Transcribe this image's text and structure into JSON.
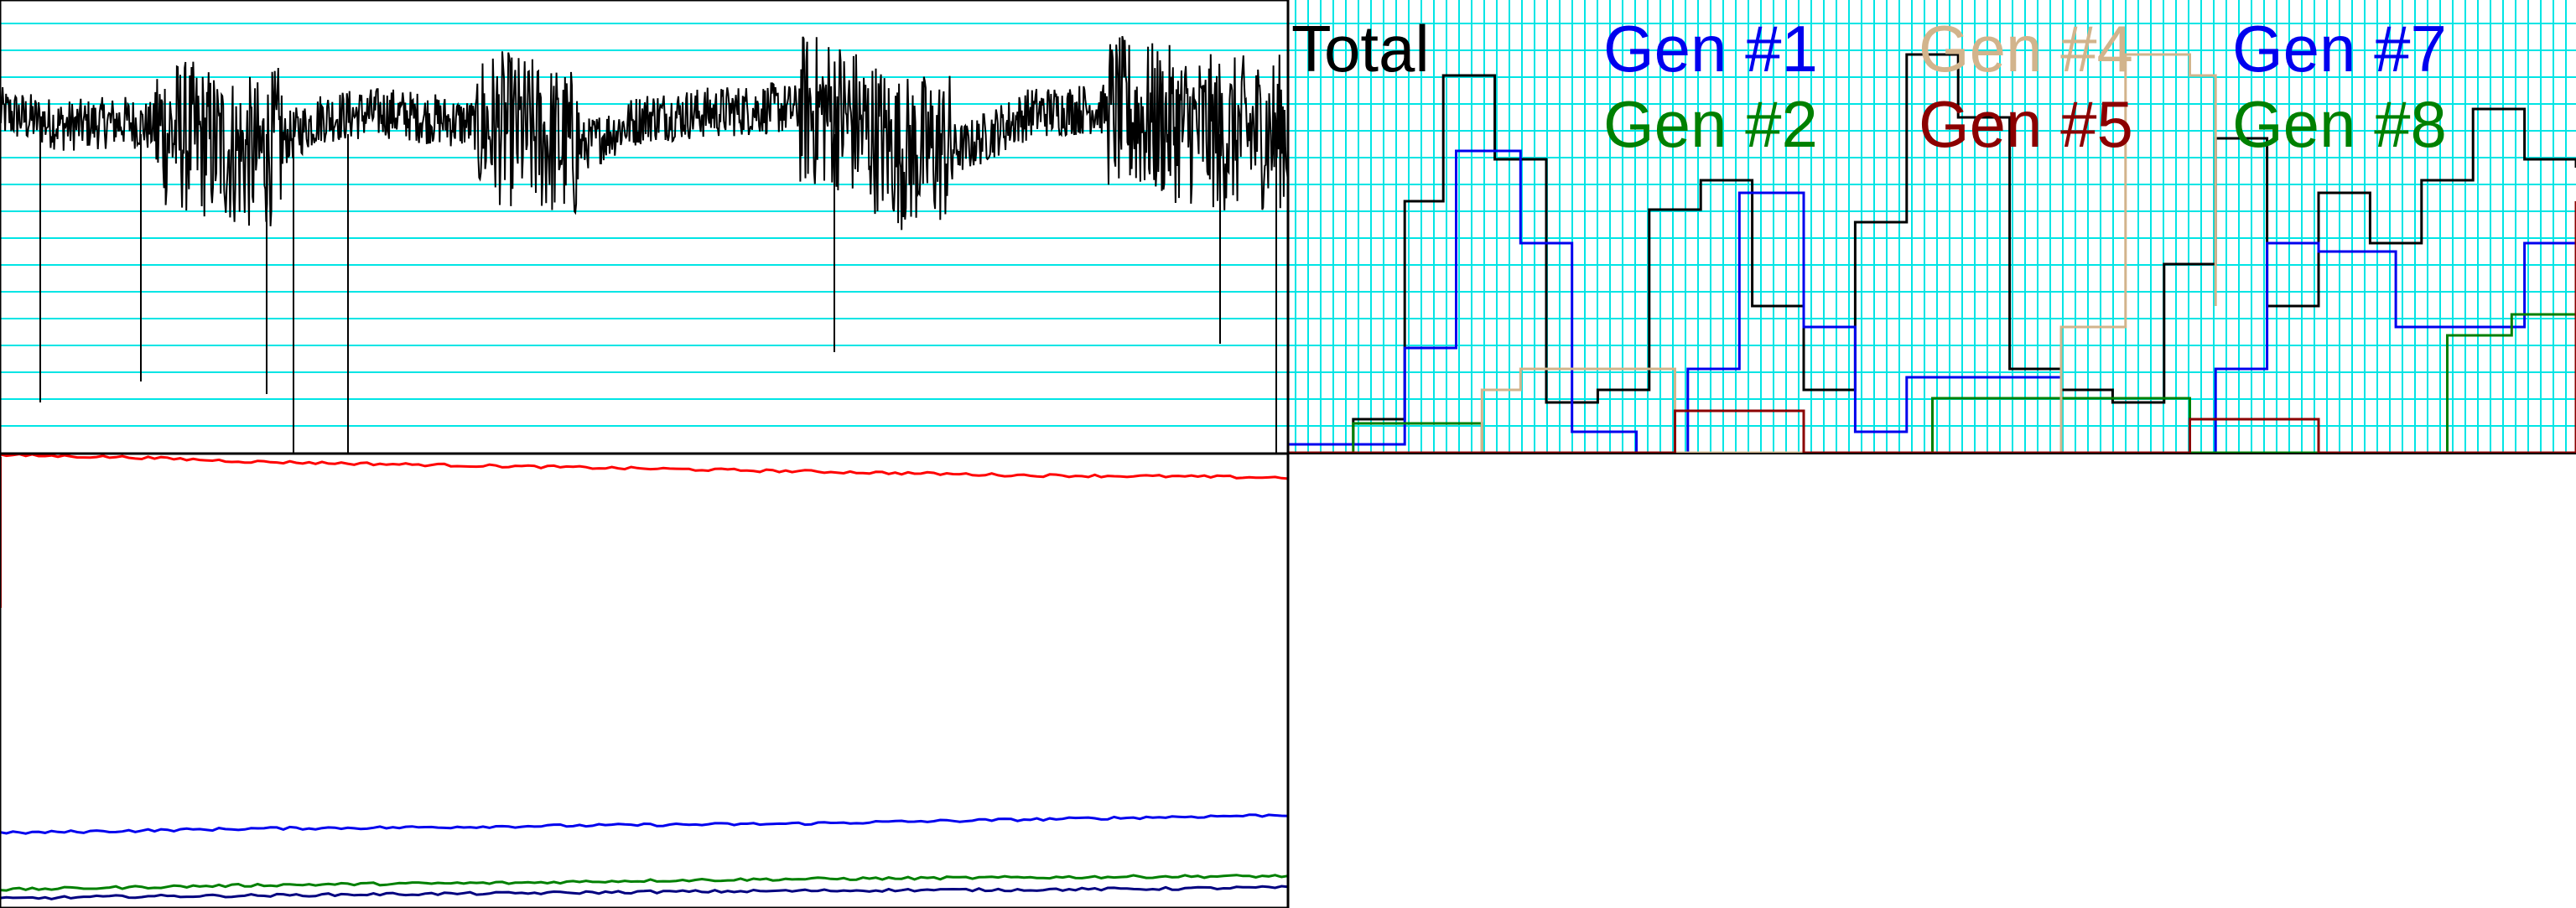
{
  "colors": {
    "grid": "#00e5e5",
    "frame": "#000000",
    "total": "#000000",
    "gen1": "#0000ee",
    "gen2": "#008000",
    "gen4": "#d2b48c",
    "gen5": "#8b0000",
    "gen7": "#0000ee",
    "gen8": "#008000",
    "red": "#ff0000"
  },
  "legend": [
    {
      "label": "Total",
      "color": "#000000"
    },
    {
      "label": "Gen #1",
      "color": "#0000ee"
    },
    {
      "label": "Gen #4",
      "color": "#d2b48c"
    },
    {
      "label": "Gen #7",
      "color": "#0000ee"
    },
    {
      "label": "Gen #2",
      "color": "#008000"
    },
    {
      "label": "Gen #5",
      "color": "#8b0000"
    },
    {
      "label": "Gen #8",
      "color": "#008000"
    }
  ],
  "chart_data": [
    {
      "type": "line",
      "panel": "top-left",
      "title": "",
      "xlabel": "",
      "ylabel": "",
      "grid": "horizontal",
      "series": [
        {
          "color": "#000000",
          "x": [
            0,
            0.05,
            0.1,
            0.15,
            0.2,
            0.25,
            0.3,
            0.35,
            0.4,
            0.45,
            0.5,
            0.55,
            0.6,
            0.65,
            0.7,
            0.75,
            0.8,
            0.85,
            0.9,
            0.95,
            1.0
          ],
          "values": [
            0.78,
            0.75,
            0.76,
            0.72,
            0.68,
            0.77,
            0.78,
            0.76,
            0.74,
            0.7,
            0.77,
            0.78,
            0.79,
            0.78,
            0.69,
            0.7,
            0.78,
            0.79,
            0.76,
            0.73,
            0.74
          ]
        }
      ]
    },
    {
      "type": "line",
      "panel": "bottom-left",
      "title": "",
      "grid": "none",
      "series": [
        {
          "color": "#ff0000",
          "x": [
            0,
            0.1,
            0.2,
            0.3,
            0.4,
            0.5,
            0.6,
            0.7,
            0.8,
            0.9,
            1.0
          ],
          "values": [
            0.995,
            0.99,
            0.98,
            0.975,
            0.97,
            0.965,
            0.96,
            0.955,
            0.95,
            0.948,
            0.945
          ]
        },
        {
          "color": "#0000ee",
          "x": [
            0,
            0.1,
            0.2,
            0.3,
            0.4,
            0.5,
            0.6,
            0.7,
            0.8,
            0.9,
            1.0
          ],
          "values": [
            0.16,
            0.165,
            0.17,
            0.172,
            0.175,
            0.178,
            0.18,
            0.185,
            0.19,
            0.195,
            0.2
          ]
        },
        {
          "color": "#008000",
          "x": [
            0,
            0.1,
            0.2,
            0.3,
            0.4,
            0.5,
            0.6,
            0.7,
            0.8,
            0.9,
            1.0
          ],
          "values": [
            0.035,
            0.04,
            0.045,
            0.048,
            0.05,
            0.055,
            0.058,
            0.06,
            0.062,
            0.064,
            0.065
          ]
        },
        {
          "color": "#000080",
          "x": [
            0,
            0.1,
            0.2,
            0.3,
            0.4,
            0.5,
            0.6,
            0.7,
            0.8,
            0.9,
            1.0
          ],
          "values": [
            0.015,
            0.02,
            0.022,
            0.025,
            0.027,
            0.03,
            0.032,
            0.034,
            0.035,
            0.037,
            0.04
          ]
        }
      ]
    },
    {
      "type": "line",
      "panel": "top-right",
      "title": "",
      "grid": "both",
      "series": [
        {
          "name": "Total",
          "color": "#000000",
          "x": [
            0,
            0.05,
            0.09,
            0.12,
            0.16,
            0.2,
            0.24,
            0.28,
            0.32,
            0.36,
            0.4,
            0.44,
            0.48,
            0.52,
            0.56,
            0.6,
            0.64,
            0.68,
            0.72,
            0.76,
            0.8,
            0.84,
            0.88,
            0.92,
            0.96,
            1.0
          ],
          "values": [
            0.02,
            0.08,
            0.6,
            0.9,
            0.7,
            0.12,
            0.15,
            0.58,
            0.65,
            0.35,
            0.15,
            0.55,
            0.95,
            0.8,
            0.2,
            0.15,
            0.12,
            0.45,
            0.75,
            0.35,
            0.62,
            0.5,
            0.65,
            0.82,
            0.7,
            0.68
          ]
        },
        {
          "name": "Gen #1",
          "color": "#0000ee",
          "x": [
            0,
            0.05,
            0.09,
            0.13,
            0.18,
            0.22,
            0.27,
            0.31,
            0.35,
            0.4,
            0.44,
            0.48,
            0.56,
            0.6,
            0.68,
            0.72,
            0.76,
            0.8,
            0.86,
            0.92,
            0.96,
            1.0
          ],
          "values": [
            0.02,
            0.02,
            0.25,
            0.72,
            0.5,
            0.05,
            0.0,
            0.2,
            0.62,
            0.3,
            0.05,
            0.18,
            0.18,
            0.0,
            0.0,
            0.2,
            0.5,
            0.48,
            0.3,
            0.3,
            0.5,
            0.45
          ]
        },
        {
          "name": "Gen #2",
          "color": "#008000",
          "x": [
            0,
            0.05,
            0.1,
            0.15,
            0.3,
            0.35,
            0.45,
            0.5,
            0.6,
            0.7,
            0.9,
            0.95,
            1.0
          ],
          "values": [
            0.0,
            0.07,
            0.07,
            0.0,
            0.0,
            0.0,
            0.0,
            0.13,
            0.13,
            0.0,
            0.28,
            0.33,
            0.33
          ]
        },
        {
          "name": "Gen #4",
          "color": "#d2b48c",
          "x": [
            0,
            0.14,
            0.15,
            0.18,
            0.23,
            0.3,
            0.55,
            0.6,
            0.65,
            0.7,
            0.72
          ],
          "values": [
            0.0,
            0.0,
            0.15,
            0.2,
            0.2,
            0.0,
            0.0,
            0.3,
            0.95,
            0.9,
            0.35
          ]
        },
        {
          "name": "Gen #5",
          "color": "#8b0000",
          "x": [
            0,
            0.25,
            0.3,
            0.35,
            0.4,
            0.45,
            0.7,
            0.78,
            0.8,
            1.0
          ],
          "values": [
            0.0,
            0.0,
            0.1,
            0.1,
            0.0,
            0.0,
            0.08,
            0.08,
            0.0,
            0.6
          ]
        },
        {
          "name": "Gen #7",
          "color": "#0000ee",
          "x": [
            0,
            1.0
          ],
          "values": [
            0.0,
            0.0
          ]
        },
        {
          "name": "Gen #8",
          "color": "#008000",
          "x": [
            0,
            1.0
          ],
          "values": [
            0.0,
            0.0
          ]
        }
      ]
    }
  ]
}
